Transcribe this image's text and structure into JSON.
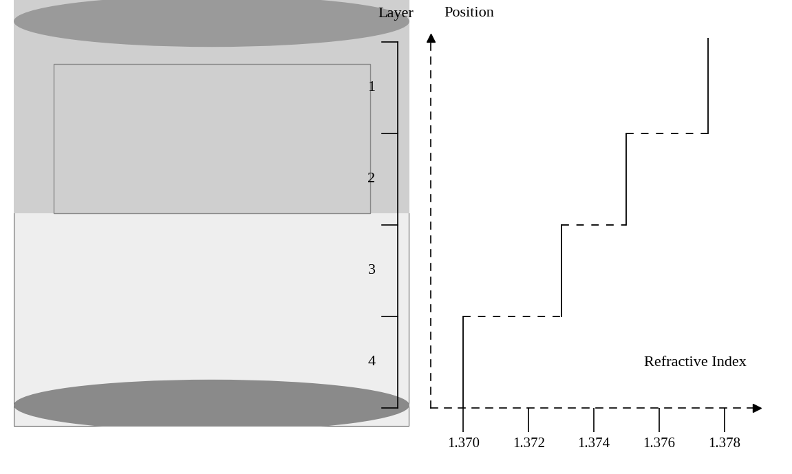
{
  "chart_data": {
    "type": "step",
    "x_label": "Refractive Index",
    "y_label": "Position",
    "layer_header": "Layer",
    "layers": [
      {
        "label": "1",
        "value": 1.3775
      },
      {
        "label": "2",
        "value": 1.375
      },
      {
        "label": "3",
        "value": 1.373
      },
      {
        "label": "4",
        "value": 1.37
      }
    ],
    "xlim": [
      1.369,
      1.379
    ],
    "xticks": [
      {
        "value": 1.37,
        "label": "1.370"
      },
      {
        "value": 1.372,
        "label": "1.372"
      },
      {
        "value": 1.374,
        "label": "1.374"
      },
      {
        "value": 1.376,
        "label": "1.376"
      },
      {
        "value": 1.378,
        "label": "1.378"
      }
    ],
    "tick_labels": "x"
  }
}
